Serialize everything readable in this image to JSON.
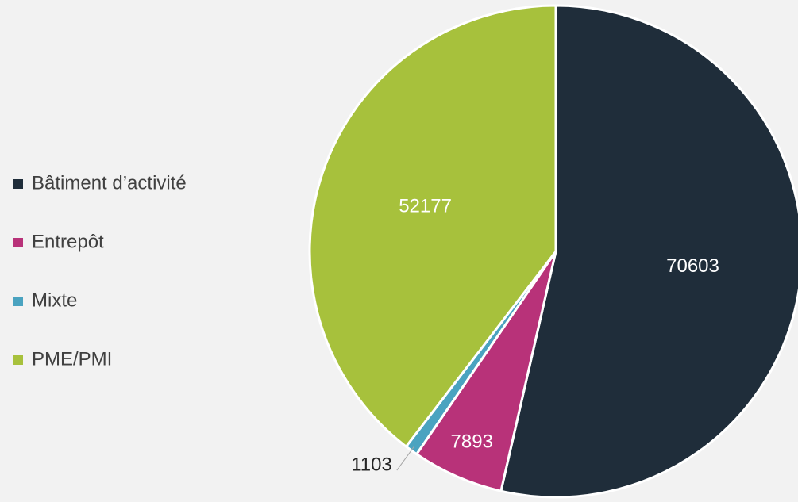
{
  "chart_data": {
    "type": "pie",
    "categories": [
      "Bâtiment d’activité",
      "Entrepôt",
      "Mixte",
      "PME/PMI"
    ],
    "values": [
      70603,
      7893,
      1103,
      52177
    ],
    "colors": [
      "#1f2d3a",
      "#b83279",
      "#4aa3c0",
      "#a7c13c"
    ],
    "legend": "left"
  }
}
